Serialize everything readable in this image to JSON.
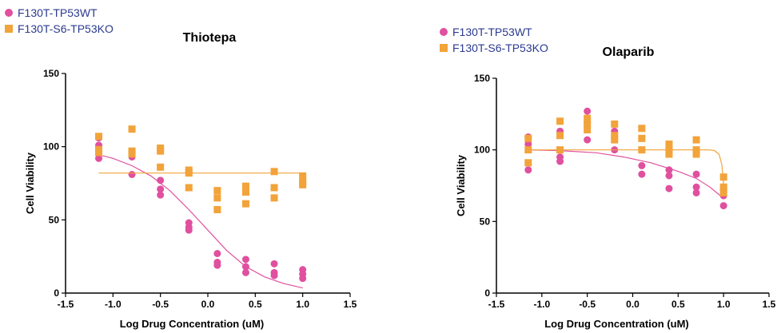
{
  "legend": [
    {
      "label": "F130T-TP53WT",
      "color": "#e0509f",
      "marker": "circle"
    },
    {
      "label": "F130T-S6-TP53KO",
      "color": "#f2a33a",
      "marker": "square"
    }
  ],
  "chart_data": [
    {
      "type": "scatter",
      "title": "Thiotepa",
      "xlabel": "Log Drug Concentration (uM)",
      "ylabel": "Cell Viability",
      "xlim": [
        -1.5,
        1.5
      ],
      "ylim": [
        0,
        150
      ],
      "xticks": [
        "-1.5",
        "-1.0",
        "-0.5",
        "0.0",
        "0.5",
        "1.0",
        "1.5"
      ],
      "yticks": [
        "0",
        "50",
        "100",
        "150"
      ],
      "grid": false,
      "legend_position": "top-left",
      "series": [
        {
          "name": "F130T-TP53WT",
          "color": "#e0509f",
          "marker": "circle",
          "points": [
            [
              -1.15,
              106
            ],
            [
              -1.15,
              101
            ],
            [
              -1.15,
              92
            ],
            [
              -0.8,
              93
            ],
            [
              -0.8,
              81
            ],
            [
              -0.5,
              77
            ],
            [
              -0.5,
              71
            ],
            [
              -0.5,
              67
            ],
            [
              -0.2,
              48
            ],
            [
              -0.2,
              45
            ],
            [
              -0.2,
              43
            ],
            [
              0.1,
              27
            ],
            [
              0.1,
              21
            ],
            [
              0.1,
              19
            ],
            [
              0.4,
              23
            ],
            [
              0.4,
              18
            ],
            [
              0.4,
              14
            ],
            [
              0.7,
              20
            ],
            [
              0.7,
              14
            ],
            [
              0.7,
              12
            ],
            [
              1.0,
              16
            ],
            [
              1.0,
              13
            ],
            [
              1.0,
              10
            ]
          ],
          "fit": [
            [
              -1.15,
              94.5
            ],
            [
              -1.0,
              92
            ],
            [
              -0.8,
              87
            ],
            [
              -0.6,
              80
            ],
            [
              -0.4,
              70
            ],
            [
              -0.2,
              57
            ],
            [
              0.0,
              43
            ],
            [
              0.2,
              29
            ],
            [
              0.4,
              18
            ],
            [
              0.6,
              11
            ],
            [
              0.8,
              6.5
            ],
            [
              1.0,
              3.5
            ]
          ]
        },
        {
          "name": "F130T-S6-TP53KO",
          "color": "#f2a33a",
          "marker": "square",
          "points": [
            [
              -1.15,
              107
            ],
            [
              -1.15,
              98
            ],
            [
              -1.15,
              96
            ],
            [
              -0.8,
              112
            ],
            [
              -0.8,
              97
            ],
            [
              -0.8,
              95
            ],
            [
              -0.5,
              99
            ],
            [
              -0.5,
              97
            ],
            [
              -0.5,
              86
            ],
            [
              -0.2,
              84
            ],
            [
              -0.2,
              82
            ],
            [
              -0.2,
              72
            ],
            [
              0.1,
              70
            ],
            [
              0.1,
              65
            ],
            [
              0.1,
              57
            ],
            [
              0.4,
              73
            ],
            [
              0.4,
              69
            ],
            [
              0.4,
              61
            ],
            [
              0.7,
              83
            ],
            [
              0.7,
              72
            ],
            [
              0.7,
              65
            ],
            [
              1.0,
              80
            ],
            [
              1.0,
              76
            ],
            [
              1.0,
              74
            ]
          ],
          "fit": [
            [
              -1.15,
              82
            ],
            [
              1.0,
              82
            ]
          ]
        }
      ]
    },
    {
      "type": "scatter",
      "title": "Olaparib",
      "xlabel": "Log Drug Concentration (uM)",
      "ylabel": "Cell Viability",
      "xlim": [
        -1.5,
        1.5
      ],
      "ylim": [
        0,
        150
      ],
      "xticks": [
        "-1.5",
        "-1.0",
        "-0.5",
        "0.0",
        "0.5",
        "1.0",
        "1.5"
      ],
      "yticks": [
        "0",
        "50",
        "100",
        "150"
      ],
      "grid": false,
      "legend_position": "top-left",
      "series": [
        {
          "name": "F130T-TP53WT",
          "color": "#e0509f",
          "marker": "circle",
          "points": [
            [
              -1.15,
              109
            ],
            [
              -1.15,
              104
            ],
            [
              -1.15,
              86
            ],
            [
              -0.8,
              113
            ],
            [
              -0.8,
              95
            ],
            [
              -0.8,
              92
            ],
            [
              -0.5,
              127
            ],
            [
              -0.5,
              119
            ],
            [
              -0.5,
              107
            ],
            [
              -0.2,
              113
            ],
            [
              -0.2,
              100
            ],
            [
              0.1,
              89
            ],
            [
              0.1,
              83
            ],
            [
              0.4,
              86
            ],
            [
              0.4,
              82
            ],
            [
              0.4,
              73
            ],
            [
              0.7,
              83
            ],
            [
              0.7,
              74
            ],
            [
              0.7,
              70
            ],
            [
              1.0,
              73
            ],
            [
              1.0,
              68
            ],
            [
              1.0,
              61
            ]
          ],
          "fit": [
            [
              -1.15,
              100
            ],
            [
              -0.8,
              99.5
            ],
            [
              -0.4,
              98
            ],
            [
              -0.1,
              95
            ],
            [
              0.2,
              91
            ],
            [
              0.5,
              85
            ],
            [
              0.7,
              80
            ],
            [
              0.85,
              74
            ],
            [
              1.0,
              66
            ]
          ]
        },
        {
          "name": "F130T-S6-TP53KO",
          "color": "#f2a33a",
          "marker": "square",
          "points": [
            [
              -1.15,
              108
            ],
            [
              -1.15,
              100
            ],
            [
              -1.15,
              91
            ],
            [
              -0.8,
              120
            ],
            [
              -0.8,
              110
            ],
            [
              -0.8,
              100
            ],
            [
              -0.5,
              122
            ],
            [
              -0.5,
              118
            ],
            [
              -0.5,
              114
            ],
            [
              -0.2,
              118
            ],
            [
              -0.2,
              110
            ],
            [
              -0.2,
              107
            ],
            [
              0.1,
              115
            ],
            [
              0.1,
              108
            ],
            [
              0.1,
              100
            ],
            [
              0.4,
              104
            ],
            [
              0.4,
              100
            ],
            [
              0.4,
              97
            ],
            [
              0.7,
              107
            ],
            [
              0.7,
              100
            ],
            [
              0.7,
              97
            ],
            [
              1.0,
              81
            ],
            [
              1.0,
              74
            ],
            [
              1.0,
              70
            ]
          ],
          "fit": [
            [
              -1.15,
              100
            ],
            [
              0.85,
              100
            ],
            [
              0.9,
              99.5
            ],
            [
              0.95,
              97
            ],
            [
              0.98,
              90
            ],
            [
              1.0,
              76
            ]
          ]
        }
      ]
    }
  ]
}
